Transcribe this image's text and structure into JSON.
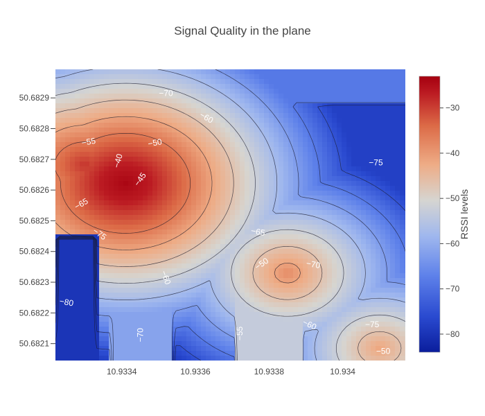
{
  "chart_data": {
    "type": "heatmap",
    "title": "Signal Quality in the plane",
    "xlabel": "",
    "ylabel": "",
    "xlim": [
      10.93322,
      10.93417
    ],
    "ylim": [
      50.682045,
      50.682993
    ],
    "x_ticks": [
      10.9334,
      10.9336,
      10.9338,
      10.934
    ],
    "x_tick_labels": [
      "10.9334",
      "10.9336",
      "10.9338",
      "10.934"
    ],
    "y_ticks": [
      50.6821,
      50.6822,
      50.6823,
      50.6824,
      50.6825,
      50.6826,
      50.6827,
      50.6828,
      50.6829
    ],
    "y_tick_labels": [
      "50.6821",
      "50.6822",
      "50.6823",
      "50.6824",
      "50.6825",
      "50.6826",
      "50.6827",
      "50.6828",
      "50.6829"
    ],
    "colorbar": {
      "title": "RSSI levels",
      "range": [
        -84,
        -23
      ],
      "ticks": [
        -30,
        -40,
        -50,
        -60,
        -70,
        -80
      ],
      "tick_labels": [
        "−30",
        "−40",
        "−50",
        "−60",
        "−70",
        "−80"
      ],
      "colorscale": [
        "#0a1d9c",
        "#2a4ad0",
        "#5f82ea",
        "#9fb7ee",
        "#d6d5d1",
        "#eeac86",
        "#dc6b47",
        "#bb1a22",
        "#a5000f"
      ]
    },
    "contour_levels": [
      -80,
      -75,
      -70,
      -65,
      -60,
      -55,
      -50,
      -45,
      -40
    ],
    "contour_labels": [
      {
        "text": "−70",
        "x": 10.93352,
        "y": 50.682915,
        "angle": 0
      },
      {
        "text": "−60",
        "x": 10.93363,
        "y": 50.682836,
        "angle": 30
      },
      {
        "text": "−55",
        "x": 10.93331,
        "y": 50.682757,
        "angle": -10
      },
      {
        "text": "−50",
        "x": 10.93349,
        "y": 50.682754,
        "angle": -10
      },
      {
        "text": "−40",
        "x": 10.93339,
        "y": 50.682695,
        "angle": -75
      },
      {
        "text": "−45",
        "x": 10.93345,
        "y": 50.682635,
        "angle": -55
      },
      {
        "text": "−75",
        "x": 10.93409,
        "y": 50.682689,
        "angle": 0
      },
      {
        "text": "−65",
        "x": 10.93329,
        "y": 50.682555,
        "angle": -30
      },
      {
        "text": "−75",
        "x": 10.93334,
        "y": 50.682457,
        "angle": 35
      },
      {
        "text": "−65",
        "x": 10.93377,
        "y": 50.682464,
        "angle": 10
      },
      {
        "text": "−50",
        "x": 10.93378,
        "y": 50.68236,
        "angle": -35
      },
      {
        "text": "−70",
        "x": 10.93392,
        "y": 50.682358,
        "angle": 10
      },
      {
        "text": "−60",
        "x": 10.93352,
        "y": 50.682315,
        "angle": 70
      },
      {
        "text": "−80",
        "x": 10.93325,
        "y": 50.682235,
        "angle": 10
      },
      {
        "text": "−60",
        "x": 10.93391,
        "y": 50.682162,
        "angle": 25
      },
      {
        "text": "−75",
        "x": 10.93408,
        "y": 50.682162,
        "angle": 0
      },
      {
        "text": "−70",
        "x": 10.93345,
        "y": 50.682128,
        "angle": -90
      },
      {
        "text": "−55",
        "x": 10.93372,
        "y": 50.682133,
        "angle": -90
      },
      {
        "text": "−50",
        "x": 10.93411,
        "y": 50.682075,
        "angle": 0
      }
    ],
    "signal_sources": [
      {
        "x": 10.93341,
        "y": 50.682622,
        "rssi": -25
      },
      {
        "x": 10.93343,
        "y": 50.682665,
        "rssi": -30
      },
      {
        "x": 10.9333,
        "y": 50.682681,
        "rssi": -33
      },
      {
        "x": 10.93348,
        "y": 50.682745,
        "rssi": -40
      },
      {
        "x": 10.93354,
        "y": 50.68274,
        "rssi": -42
      },
      {
        "x": 10.93385,
        "y": 50.68233,
        "rssi": -42
      },
      {
        "x": 10.9341,
        "y": 50.682085,
        "rssi": -45
      }
    ]
  }
}
